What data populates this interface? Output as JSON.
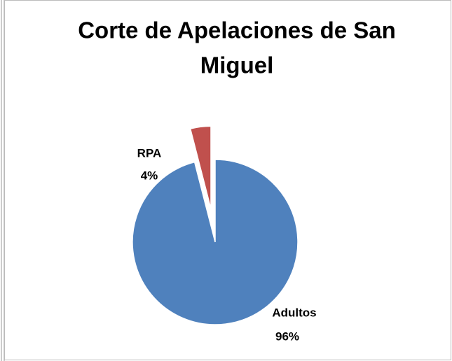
{
  "chart_data": {
    "type": "pie",
    "title": [
      "Corte de Apelaciones de San",
      "Miguel"
    ],
    "categories": [
      "Adultos",
      "RPA"
    ],
    "values": [
      96,
      4
    ],
    "value_labels": [
      "96%",
      "4%"
    ],
    "colors": [
      "#4f81bd",
      "#c0504d"
    ],
    "exploded": [
      false,
      true
    ]
  }
}
